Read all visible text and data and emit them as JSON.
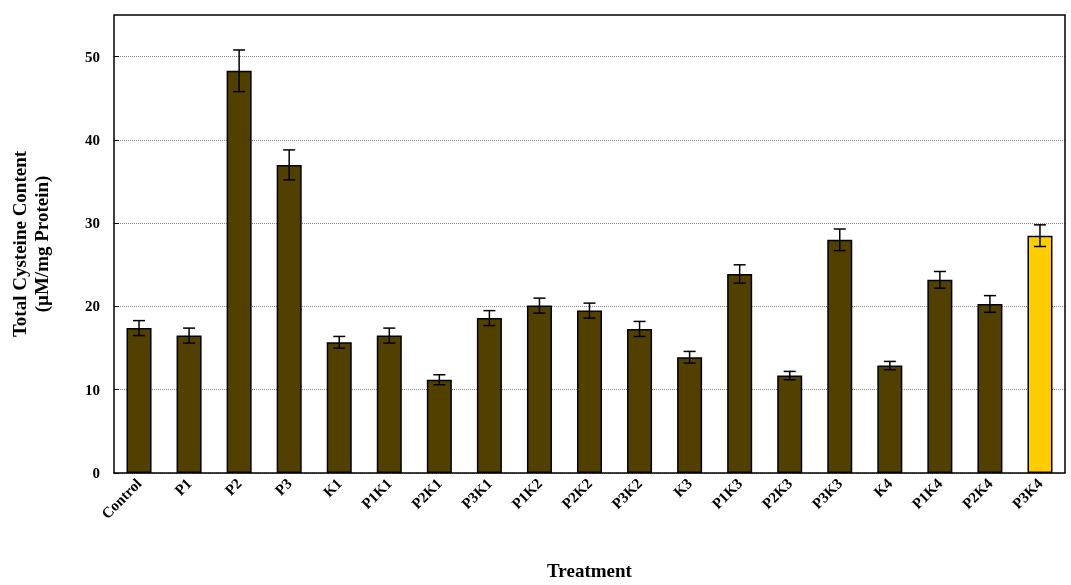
{
  "chart_data": {
    "type": "bar",
    "xlabel": "Treatment",
    "ylabel": "Total Cysteine Content\n(µM/mg Protein)",
    "categories": [
      "Control",
      "P1",
      "P2",
      "P3",
      "K1",
      "P1K1",
      "P2K1",
      "P3K1",
      "P1K2",
      "P2K2",
      "P3K2",
      "K3",
      "P1K3",
      "P2K3",
      "P3K3",
      "K4",
      "P1K4",
      "P2K4",
      "P3K4"
    ],
    "values": [
      17.4,
      16.5,
      48.3,
      37.0,
      15.7,
      16.5,
      11.2,
      18.6,
      20.1,
      19.5,
      17.3,
      13.9,
      23.9,
      11.7,
      28.0,
      12.9,
      23.2,
      20.3,
      28.5
    ],
    "errors": [
      0.9,
      0.9,
      2.5,
      1.8,
      0.7,
      0.9,
      0.6,
      0.9,
      0.9,
      0.9,
      0.9,
      0.7,
      1.1,
      0.5,
      1.3,
      0.5,
      1.0,
      1.0,
      1.3
    ],
    "colors": [
      "#524000",
      "#524000",
      "#524000",
      "#524000",
      "#524000",
      "#524000",
      "#524000",
      "#524000",
      "#524000",
      "#524000",
      "#524000",
      "#524000",
      "#524000",
      "#524000",
      "#524000",
      "#524000",
      "#524000",
      "#524000",
      "#ffcc00"
    ],
    "ylim": [
      0,
      55
    ],
    "yticks": [
      0,
      10,
      20,
      30,
      40,
      50
    ],
    "grid": "y"
  }
}
